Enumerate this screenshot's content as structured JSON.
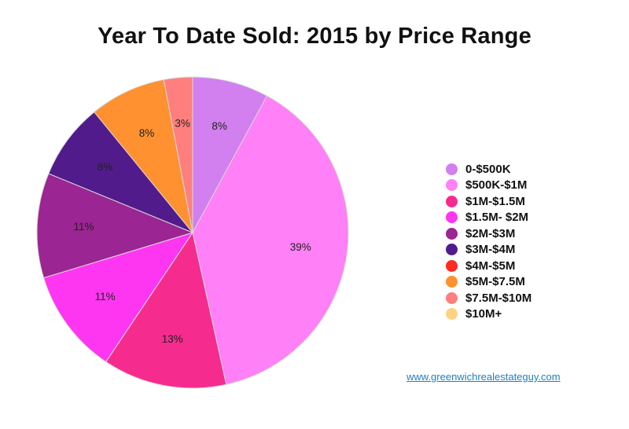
{
  "chart_data": {
    "type": "pie",
    "title": "Year To Date Sold: 2015 by Price Range",
    "slices": [
      {
        "label": "0-$500K",
        "value": 8,
        "display": "8%",
        "color": "#D27FF0"
      },
      {
        "label": "$500K-$1M",
        "value": 39,
        "display": "39%",
        "color": "#FF80F7"
      },
      {
        "label": "$1M-$1.5M",
        "value": 13,
        "display": "13%",
        "color": "#F52C8E"
      },
      {
        "label": "$1.5M- $2M",
        "value": 11,
        "display": "11%",
        "color": "#FF36F1"
      },
      {
        "label": "$2M-$3M",
        "value": 11,
        "display": "11%",
        "color": "#9B2593"
      },
      {
        "label": "$3M-$4M",
        "value": 8,
        "display": "8%",
        "color": "#521B8C"
      },
      {
        "label": "$4M-$5M",
        "value": 0,
        "display": "",
        "color": "#FF2A20"
      },
      {
        "label": "$5M-$7.5M",
        "value": 8,
        "display": "8%",
        "color": "#FF9130"
      },
      {
        "label": "$7.5M-$10M",
        "value": 3,
        "display": "3%",
        "color": "#FF7F7F"
      },
      {
        "label": "$10M+",
        "value": 0,
        "display": "",
        "color": "#FDD383"
      }
    ],
    "legend_position": "right"
  },
  "source_link": "www.greenwichrealestateguy.com"
}
